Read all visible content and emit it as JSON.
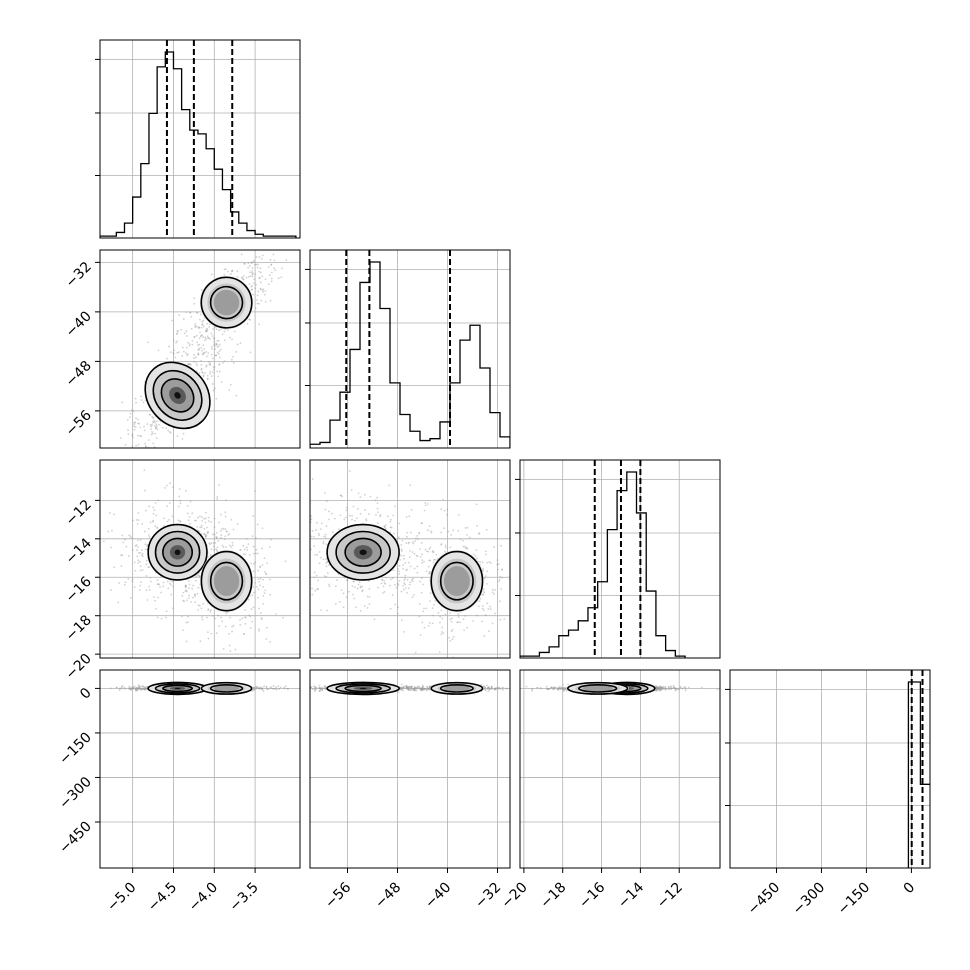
{
  "chart_data": {
    "type": "corner",
    "grid": true,
    "params": [
      {
        "range": [
          -5.4,
          -2.95
        ],
        "ticks": [
          -5.0,
          -4.5,
          -4.0,
          -3.5
        ],
        "tick_labels": [
          "−5.0",
          "−4.5",
          "−4.0",
          "−3.5"
        ],
        "quantiles": [
          -4.58,
          -4.25,
          -3.78
        ],
        "hist_edges_from": -5.4,
        "hist_bin_width": 0.1,
        "hist_counts": [
          1,
          1,
          3,
          8,
          22,
          40,
          67,
          92,
          100,
          91,
          69,
          58,
          56,
          48,
          37,
          26,
          14,
          8,
          4,
          2,
          1,
          1,
          1,
          1
        ]
      },
      {
        "range": [
          -62,
          -30
        ],
        "ticks": [
          -56,
          -48,
          -40,
          -32
        ],
        "tick_labels": [
          "−56",
          "−48",
          "−40",
          "−32"
        ],
        "quantiles": [
          -56.2,
          -52.5,
          -39.6
        ],
        "hist_edges_from": -62,
        "hist_bin_width": 1.6,
        "hist_counts": [
          2,
          3,
          15,
          30,
          53,
          89,
          100,
          75,
          35,
          18,
          9,
          4,
          5,
          14,
          35,
          58,
          66,
          43,
          19,
          6
        ]
      },
      {
        "range": [
          -20.2,
          -9.9
        ],
        "ticks": [
          -20,
          -18,
          -16,
          -14,
          -12
        ],
        "tick_labels": [
          "−20",
          "−18",
          "−16",
          "−14",
          "−12"
        ],
        "quantiles": [
          -16.35,
          -15.0,
          -14.0
        ],
        "hist_edges_from": -20.2,
        "hist_bin_width": 0.5,
        "hist_counts": [
          1,
          1,
          3,
          6,
          12,
          15,
          20,
          27,
          41,
          69,
          90,
          100,
          78,
          36,
          12,
          4,
          1
        ]
      },
      {
        "range": [
          -605,
          62
        ],
        "ticks": [
          -450,
          -300,
          -150,
          0
        ],
        "tick_labels": [
          "−450",
          "−300",
          "−150",
          "0"
        ],
        "quantiles": [
          1,
          37
        ],
        "hist_edges_from": -10,
        "hist_bin_width": 40,
        "hist_counts": [
          100,
          45
        ]
      }
    ]
  }
}
